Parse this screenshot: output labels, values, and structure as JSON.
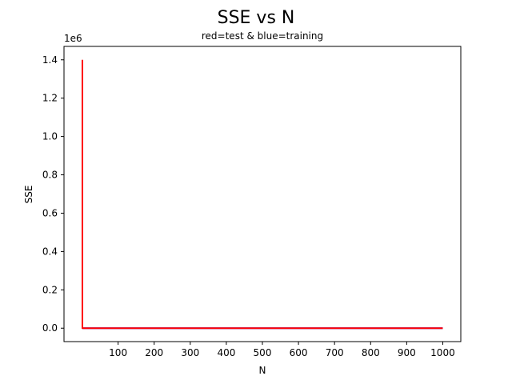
{
  "chart_data": {
    "type": "line",
    "title": "SSE vs N",
    "subtitle": "red=test & blue=training",
    "xlabel": "N",
    "ylabel": "SSE",
    "y_offset_text": "1e6",
    "xlim": [
      -50,
      1050
    ],
    "ylim": [
      -0.07,
      1.47
    ],
    "x_ticks": [
      100,
      200,
      300,
      400,
      500,
      600,
      700,
      800,
      900,
      1000
    ],
    "y_ticks": [
      0.0,
      0.2,
      0.4,
      0.6,
      0.8,
      1.0,
      1.2,
      1.4
    ],
    "y_tick_labels": [
      "0.0",
      "0.2",
      "0.4",
      "0.6",
      "0.8",
      "1.0",
      "1.2",
      "1.4"
    ],
    "grid": false,
    "series": [
      {
        "color": "#0000ff",
        "x": [
          1,
          10,
          50,
          100,
          200,
          300,
          400,
          500,
          600,
          700,
          800,
          900,
          1000
        ],
        "y": [
          0.0,
          0.0,
          0.0,
          0.0,
          0.0,
          0.0,
          0.0,
          0.0,
          0.0,
          0.0,
          0.0,
          0.0,
          0.0
        ]
      },
      {
        "color": "#ff0000",
        "x": [
          1,
          1,
          2,
          10,
          50,
          100,
          200,
          300,
          400,
          500,
          600,
          700,
          800,
          900,
          1000
        ],
        "y": [
          1.4,
          0.0,
          0.0,
          0.0,
          0.0,
          0.0,
          0.0,
          0.0,
          0.0,
          0.0,
          0.0,
          0.0,
          0.0,
          0.0,
          0.0
        ]
      }
    ]
  }
}
